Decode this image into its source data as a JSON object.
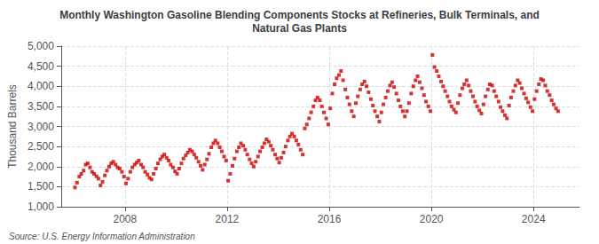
{
  "chart_data": {
    "type": "scatter",
    "title": "Monthly Washington Gasoline Blending Components Stocks at Refineries, Bulk Terminals, and\nNatural Gas Plants",
    "ylabel": "Thousand Barrels",
    "annotations": [
      "Source: U.S. Energy Information Administration"
    ],
    "color": "#cc0000",
    "marker": "square",
    "grid": true,
    "xlim": [
      2005.5,
      2025.8
    ],
    "xticks": [
      2008,
      2012,
      2016,
      2020,
      2024
    ],
    "ylim": [
      1000,
      5000
    ],
    "yticks": [
      {
        "value": 1000,
        "label": "1,000"
      },
      {
        "value": 1500,
        "label": "1,500"
      },
      {
        "value": 2000,
        "label": "2,000"
      },
      {
        "value": 2500,
        "label": "2,500"
      },
      {
        "value": 3000,
        "label": "3,000"
      },
      {
        "value": 3500,
        "label": "3,500"
      },
      {
        "value": 4000,
        "label": "4,000"
      },
      {
        "value": 4500,
        "label": "4,500"
      },
      {
        "value": 5000,
        "label": "5,000"
      }
    ],
    "x": [
      2006.04,
      2006.12,
      2006.21,
      2006.29,
      2006.38,
      2006.46,
      2006.54,
      2006.63,
      2006.71,
      2006.79,
      2006.88,
      2006.96,
      2007.04,
      2007.12,
      2007.21,
      2007.29,
      2007.38,
      2007.46,
      2007.54,
      2007.63,
      2007.71,
      2007.79,
      2007.88,
      2007.96,
      2008.04,
      2008.12,
      2008.21,
      2008.29,
      2008.38,
      2008.46,
      2008.54,
      2008.63,
      2008.71,
      2008.79,
      2008.88,
      2008.96,
      2009.04,
      2009.12,
      2009.21,
      2009.29,
      2009.38,
      2009.46,
      2009.54,
      2009.63,
      2009.71,
      2009.79,
      2009.88,
      2009.96,
      2010.04,
      2010.12,
      2010.21,
      2010.29,
      2010.38,
      2010.46,
      2010.54,
      2010.63,
      2010.71,
      2010.79,
      2010.88,
      2010.96,
      2011.04,
      2011.12,
      2011.21,
      2011.29,
      2011.38,
      2011.46,
      2011.54,
      2011.63,
      2011.71,
      2011.79,
      2011.88,
      2011.96,
      2012.04,
      2012.12,
      2012.21,
      2012.29,
      2012.38,
      2012.46,
      2012.54,
      2012.63,
      2012.71,
      2012.79,
      2012.88,
      2012.96,
      2013.04,
      2013.12,
      2013.21,
      2013.29,
      2013.38,
      2013.46,
      2013.54,
      2013.63,
      2013.71,
      2013.79,
      2013.88,
      2013.96,
      2014.04,
      2014.12,
      2014.21,
      2014.29,
      2014.38,
      2014.46,
      2014.54,
      2014.63,
      2014.71,
      2014.79,
      2014.88,
      2014.96,
      2015.04,
      2015.12,
      2015.21,
      2015.29,
      2015.38,
      2015.46,
      2015.54,
      2015.63,
      2015.71,
      2015.79,
      2015.88,
      2015.96,
      2016.04,
      2016.12,
      2016.21,
      2016.29,
      2016.38,
      2016.46,
      2016.54,
      2016.63,
      2016.71,
      2016.79,
      2016.88,
      2016.96,
      2017.04,
      2017.12,
      2017.21,
      2017.29,
      2017.38,
      2017.46,
      2017.54,
      2017.63,
      2017.71,
      2017.79,
      2017.88,
      2017.96,
      2018.04,
      2018.12,
      2018.21,
      2018.29,
      2018.38,
      2018.46,
      2018.54,
      2018.63,
      2018.71,
      2018.79,
      2018.88,
      2018.96,
      2019.04,
      2019.12,
      2019.21,
      2019.29,
      2019.38,
      2019.46,
      2019.54,
      2019.63,
      2019.71,
      2019.79,
      2019.88,
      2019.96,
      2020.04,
      2020.12,
      2020.21,
      2020.29,
      2020.38,
      2020.46,
      2020.54,
      2020.63,
      2020.71,
      2020.79,
      2020.88,
      2020.96,
      2021.04,
      2021.12,
      2021.21,
      2021.29,
      2021.38,
      2021.46,
      2021.54,
      2021.63,
      2021.71,
      2021.79,
      2021.88,
      2021.96,
      2022.04,
      2022.12,
      2022.21,
      2022.29,
      2022.38,
      2022.46,
      2022.54,
      2022.63,
      2022.71,
      2022.79,
      2022.88,
      2022.96,
      2023.04,
      2023.12,
      2023.21,
      2023.29,
      2023.38,
      2023.46,
      2023.54,
      2023.63,
      2023.71,
      2023.79,
      2023.88,
      2023.96,
      2024.04,
      2024.12,
      2024.21,
      2024.29,
      2024.38,
      2024.46,
      2024.54,
      2024.63,
      2024.71,
      2024.79,
      2024.88,
      2024.96
    ],
    "values": [
      1480,
      1600,
      1750,
      1820,
      1900,
      2050,
      2080,
      1980,
      1870,
      1820,
      1760,
      1700,
      1530,
      1620,
      1780,
      1900,
      2000,
      2080,
      2120,
      2050,
      1980,
      1950,
      1870,
      1750,
      1580,
      1700,
      1870,
      1980,
      2050,
      2100,
      2150,
      2050,
      1980,
      1870,
      1800,
      1720,
      1680,
      1820,
      1950,
      2080,
      2180,
      2250,
      2300,
      2220,
      2150,
      2050,
      1980,
      1880,
      1820,
      1950,
      2080,
      2200,
      2280,
      2350,
      2420,
      2380,
      2300,
      2220,
      2120,
      2020,
      1920,
      2050,
      2180,
      2320,
      2480,
      2580,
      2650,
      2580,
      2480,
      2380,
      2250,
      2150,
      1650,
      1820,
      2020,
      2200,
      2380,
      2480,
      2580,
      2520,
      2420,
      2300,
      2180,
      2080,
      2000,
      2120,
      2250,
      2380,
      2480,
      2580,
      2680,
      2620,
      2520,
      2420,
      2300,
      2200,
      2100,
      2220,
      2350,
      2500,
      2650,
      2750,
      2820,
      2750,
      2650,
      2550,
      2420,
      2300,
      2950,
      3050,
      3200,
      3350,
      3500,
      3650,
      3720,
      3650,
      3500,
      3350,
      3200,
      3050,
      3450,
      3820,
      4050,
      4200,
      4280,
      4380,
      4150,
      3920,
      3720,
      3550,
      3380,
      3250,
      3580,
      3750,
      3920,
      4050,
      4120,
      4000,
      3850,
      3680,
      3520,
      3380,
      3250,
      3120,
      3350,
      3550,
      3720,
      3880,
      4020,
      4100,
      3980,
      3820,
      3650,
      3500,
      3380,
      3250,
      3380,
      3580,
      3820,
      4000,
      4150,
      4250,
      4100,
      3950,
      3780,
      3620,
      3500,
      3380,
      4780,
      4480,
      4380,
      4250,
      4120,
      4000,
      3880,
      3750,
      3620,
      3500,
      3420,
      3350,
      3580,
      3780,
      3950,
      4050,
      4150,
      4020,
      3880,
      3750,
      3620,
      3500,
      3400,
      3320,
      3550,
      3750,
      3920,
      4050,
      4020,
      3880,
      3750,
      3620,
      3480,
      3380,
      3280,
      3200,
      3520,
      3720,
      3880,
      4020,
      4150,
      4080,
      3950,
      3820,
      3700,
      3600,
      3480,
      3380,
      3680,
      3880,
      4050,
      4180,
      4150,
      4020,
      3880,
      3780,
      3650,
      3550,
      3450,
      3380
    ]
  }
}
